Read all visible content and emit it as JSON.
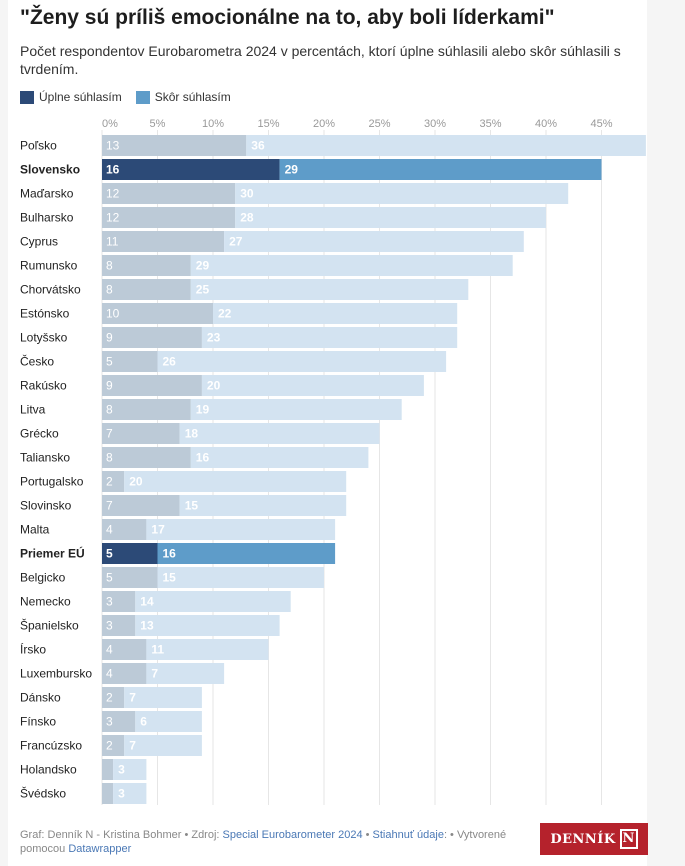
{
  "title": "\"Ženy sú príliš emocionálne na to, aby boli líderkami\"",
  "subtitle": "Počet respondentov Eurobarometra 2024 v percentách, ktorí úplne súhlasili alebo skôr súhlasili s tvrdením.",
  "legend": {
    "full": "Úplne súhlasím",
    "partly": "Skôr súhlasím"
  },
  "colors": {
    "full": "#2c4a77",
    "partly": "#5e9cc9",
    "full_muted": "#bccad7",
    "partly_muted": "#d3e3f1",
    "axis": "#999999",
    "text": "#222222"
  },
  "chart_data": {
    "type": "bar",
    "orientation": "horizontal",
    "stacked": true,
    "xlim": [
      0,
      49
    ],
    "x_ticks": [
      "0%",
      "5%",
      "10%",
      "15%",
      "20%",
      "25%",
      "30%",
      "35%",
      "40%",
      "45%"
    ],
    "series": [
      {
        "name": "Úplne súhlasím",
        "values": [
          13,
          16,
          12,
          12,
          11,
          8,
          8,
          10,
          9,
          5,
          9,
          8,
          7,
          8,
          2,
          7,
          4,
          5,
          5,
          3,
          3,
          4,
          4,
          2,
          3,
          2,
          1,
          1
        ]
      },
      {
        "name": "Skôr súhlasím",
        "values": [
          36,
          29,
          30,
          28,
          27,
          29,
          25,
          22,
          23,
          26,
          20,
          19,
          18,
          16,
          20,
          15,
          17,
          16,
          15,
          14,
          13,
          11,
          7,
          7,
          6,
          7,
          3,
          3
        ]
      }
    ],
    "categories": [
      "Poľsko",
      "Slovensko",
      "Maďarsko",
      "Bulharsko",
      "Cyprus",
      "Rumunsko",
      "Chorvátsko",
      "Estónsko",
      "Lotyšsko",
      "Česko",
      "Rakúsko",
      "Litva",
      "Grécko",
      "Taliansko",
      "Portugalsko",
      "Slovinsko",
      "Malta",
      "Priemer EÚ",
      "Belgicko",
      "Nemecko",
      "Španielsko",
      "Írsko",
      "Luxembursko",
      "Dánsko",
      "Fínsko",
      "Francúzsko",
      "Holandsko",
      "Švédsko"
    ],
    "full_labels": [
      "13",
      "16",
      "12",
      "12",
      "11",
      "8",
      "8",
      "10",
      "9",
      "5",
      "9",
      "8",
      "7",
      "8",
      "2",
      "7",
      "4",
      "5",
      "5",
      "3",
      "3",
      "4",
      "4",
      "2",
      "3",
      "2",
      "",
      ""
    ],
    "highlighted": [
      "Slovensko",
      "Priemer EÚ"
    ]
  },
  "footer": {
    "prefix": "Graf: Denník N - Kristina Bohmer • Zdroj: ",
    "source": "Special Eurobarometer 2024",
    "separator": " • ",
    "download": "Stiahnuť údaje",
    "middle": ": • Vytvorené pomocou ",
    "tool": "Datawrapper"
  },
  "logo": {
    "text": "DENNÍK",
    "mark": "N"
  }
}
